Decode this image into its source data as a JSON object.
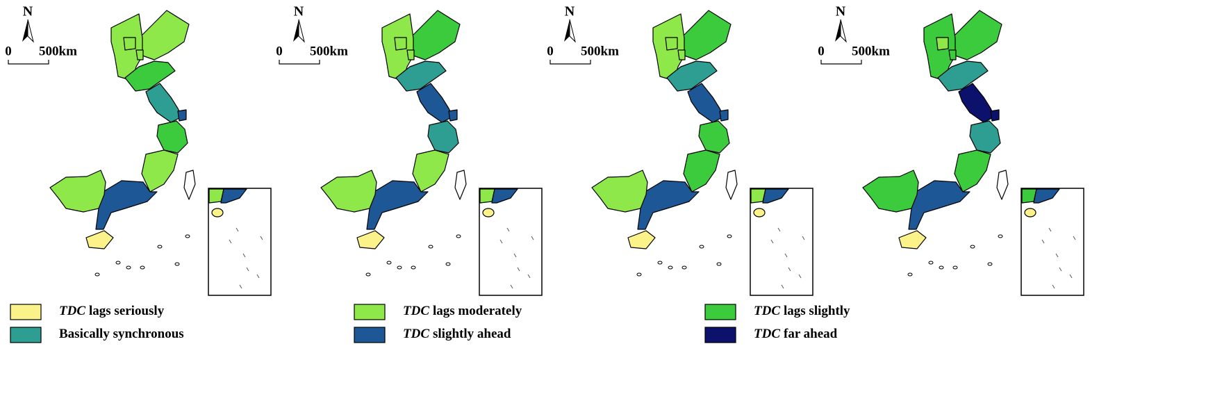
{
  "panels": [
    {
      "north": "N",
      "scale_start": "0",
      "scale_end": "500km",
      "region_colors": [
        "#8fe84a",
        "#8fe84a",
        "#8fe84a",
        "#8fe84a",
        "#3ccb3c",
        "#2e9e93",
        "#1e5796",
        "#3ccb3c",
        "#8fe84a",
        "#1e5796",
        "#8fe84a",
        "#fbf28a"
      ]
    },
    {
      "north": "N",
      "scale_start": "0",
      "scale_end": "500km",
      "region_colors": [
        "#3ccb3c",
        "#8fe84a",
        "#8fe84a",
        "#8fe84a",
        "#2e9e93",
        "#1e5796",
        "#1e5796",
        "#2e9e93",
        "#8fe84a",
        "#1e5796",
        "#8fe84a",
        "#fbf28a"
      ]
    },
    {
      "north": "N",
      "scale_start": "0",
      "scale_end": "500km",
      "region_colors": [
        "#3ccb3c",
        "#8fe84a",
        "#8fe84a",
        "#8fe84a",
        "#2e9e93",
        "#1e5796",
        "#1e5796",
        "#3ccb3c",
        "#3ccb3c",
        "#1e5796",
        "#8fe84a",
        "#fbf28a"
      ]
    },
    {
      "north": "N",
      "scale_start": "0",
      "scale_end": "500km",
      "region_colors": [
        "#3ccb3c",
        "#3ccb3c",
        "#8fe84a",
        "#3ccb3c",
        "#2e9e93",
        "#0c126b",
        "#0c126b",
        "#2e9e93",
        "#3ccb3c",
        "#1e5796",
        "#3ccb3c",
        "#fbf28a"
      ]
    }
  ],
  "legend": [
    {
      "emphasis": "TDC",
      "text": "lags seriously",
      "color": "#fbf28a"
    },
    {
      "emphasis": "TDC",
      "text": "lags moderately",
      "color": "#8fe84a"
    },
    {
      "emphasis": "TDC",
      "text": "lags slightly",
      "color": "#3ccb3c"
    },
    {
      "text": "Basically synchronous",
      "color": "#2e9e93"
    },
    {
      "emphasis": "TDC",
      "text": "slightly ahead",
      "color": "#1e5796"
    },
    {
      "emphasis": "TDC",
      "text": "far ahead",
      "color": "#0c126b"
    }
  ]
}
